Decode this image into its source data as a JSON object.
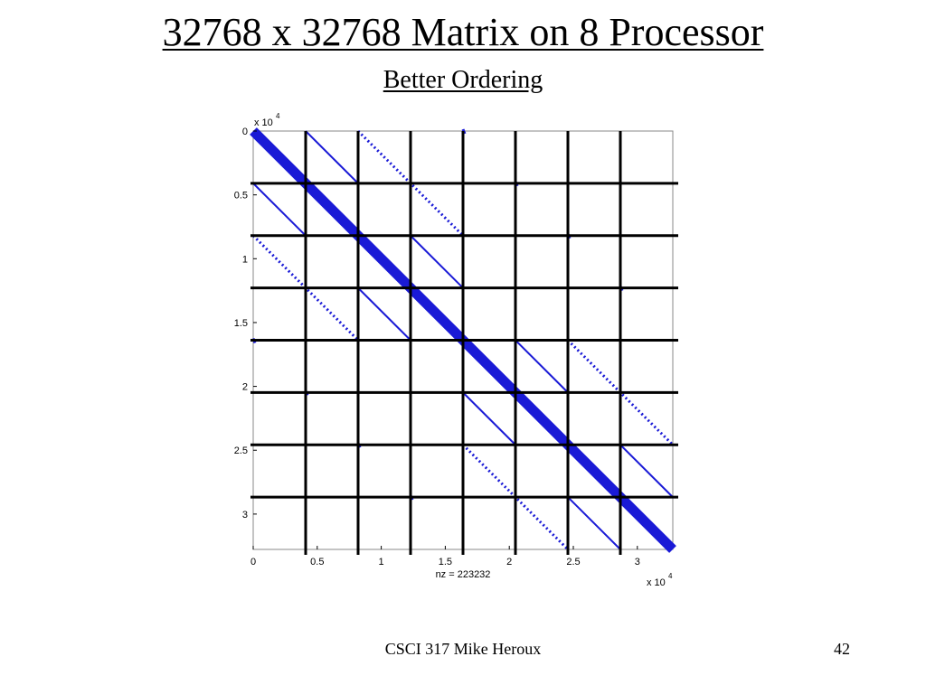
{
  "slide": {
    "title": "32768 x 32768 Matrix on 8 Processor",
    "subtitle": "Better Ordering",
    "footer_text": "CSCI 317 Mike Heroux",
    "page_number": "42"
  },
  "chart_data": {
    "type": "spy",
    "description_label": "nz = 223232",
    "matrix_size": 32768,
    "nonzeros": 223232,
    "x_multiplier_label": "x 10",
    "x_multiplier_exponent": "4",
    "y_multiplier_label": "x 10",
    "y_multiplier_exponent": "4",
    "xlim": [
      0,
      32768
    ],
    "ylim": [
      0,
      32768
    ],
    "y_reversed": true,
    "xticks": [
      0,
      5000,
      10000,
      15000,
      20000,
      25000,
      30000
    ],
    "xtick_labels": [
      "0",
      "0.5",
      "1",
      "1.5",
      "2",
      "2.5",
      "3"
    ],
    "yticks": [
      0,
      5000,
      10000,
      15000,
      20000,
      25000,
      30000
    ],
    "ytick_labels": [
      "0",
      "0.5",
      "1",
      "1.5",
      "2",
      "2.5",
      "3"
    ],
    "colors": {
      "nonzero": "#1a1ad6",
      "partition": "#000000"
    },
    "partition_boundaries": [
      4096,
      8192,
      12288,
      16384,
      20480,
      24576,
      28672
    ],
    "diagonals": [
      {
        "offset": 0,
        "style": "thick",
        "from": 0,
        "to": 32768
      },
      {
        "offset": 4096,
        "style": "solid",
        "from": 0,
        "to": 4096
      },
      {
        "offset": 4096,
        "style": "solid",
        "from": 8192,
        "to": 12288
      },
      {
        "offset": 4096,
        "style": "solid",
        "from": 16384,
        "to": 20480
      },
      {
        "offset": 4096,
        "style": "solid",
        "from": 24576,
        "to": 28672
      },
      {
        "offset": -4096,
        "style": "solid",
        "from": 4096,
        "to": 8192
      },
      {
        "offset": -4096,
        "style": "solid",
        "from": 12288,
        "to": 16384
      },
      {
        "offset": -4096,
        "style": "solid",
        "from": 20480,
        "to": 24576
      },
      {
        "offset": -4096,
        "style": "solid",
        "from": 28672,
        "to": 32768
      },
      {
        "offset": 8192,
        "style": "dotted",
        "from": 0,
        "to": 8192
      },
      {
        "offset": 8192,
        "style": "dotted",
        "from": 16384,
        "to": 24576
      },
      {
        "offset": -8192,
        "style": "dotted",
        "from": 8192,
        "to": 16384
      },
      {
        "offset": -8192,
        "style": "dotted",
        "from": 24576,
        "to": 32768
      },
      {
        "offset": 16384,
        "style": "dot",
        "from": 0,
        "to": 0
      },
      {
        "offset": 16384,
        "style": "dot",
        "from": 4096,
        "to": 4096
      },
      {
        "offset": 16384,
        "style": "dot",
        "from": 8192,
        "to": 8192
      },
      {
        "offset": 16384,
        "style": "dot",
        "from": 12288,
        "to": 12288
      },
      {
        "offset": -16384,
        "style": "dot",
        "from": 16384,
        "to": 16384
      },
      {
        "offset": -16384,
        "style": "dot",
        "from": 20480,
        "to": 20480
      },
      {
        "offset": -16384,
        "style": "dot",
        "from": 24576,
        "to": 24576
      },
      {
        "offset": -16384,
        "style": "dot",
        "from": 28672,
        "to": 28672
      }
    ]
  }
}
